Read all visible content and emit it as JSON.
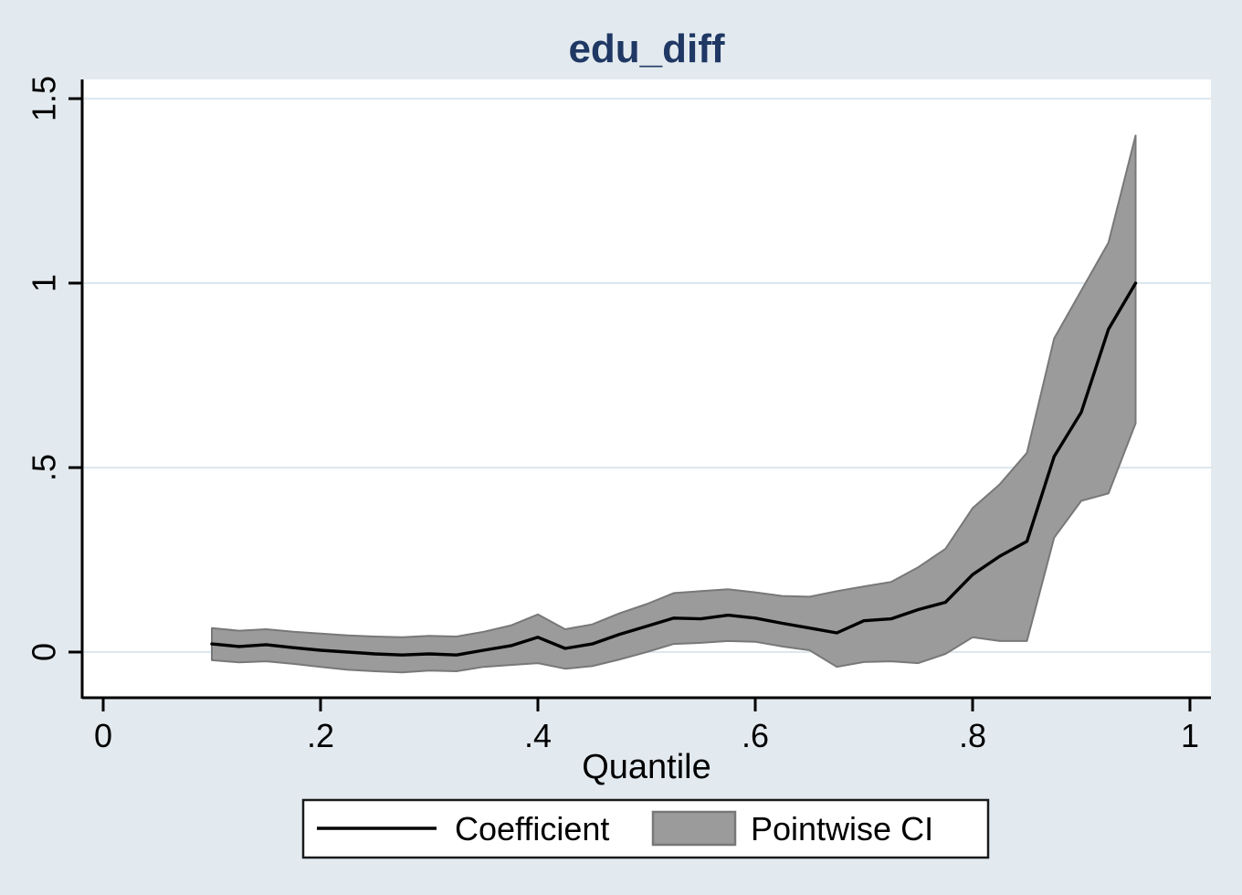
{
  "title": "edu_diff",
  "colors": {
    "background": "#e3eaef",
    "plot_background": "#ffffff",
    "gridline": "#dce7ee",
    "axis": "#000000",
    "title_text": "#1f3864",
    "tick_text": "#000000",
    "coefficient_line": "#000000",
    "ci_band_fill": "#9b9b9b",
    "ci_band_edge": "#787878",
    "legend_background": "#ffffff",
    "legend_border": "#1a1a1a"
  },
  "legend": {
    "items": [
      {
        "label": "Coefficient",
        "swatch": "line"
      },
      {
        "label": "Pointwise CI",
        "swatch": "box"
      }
    ]
  },
  "chart_data": {
    "type": "line",
    "title": "edu_diff",
    "xlabel": "Quantile",
    "ylabel": "",
    "grid": "horizontal",
    "legend_position": "bottom-center",
    "xlim": [
      -0.02,
      1.02
    ],
    "ylim": [
      -0.13,
      1.55
    ],
    "x_ticks": [
      0,
      0.2,
      0.4,
      0.6,
      0.8,
      1
    ],
    "x_tick_labels": [
      "0",
      ".2",
      ".4",
      ".6",
      ".8",
      "1"
    ],
    "y_ticks": [
      0,
      0.5,
      1,
      1.5
    ],
    "y_tick_labels": [
      "0",
      ".5",
      "1",
      "1.5"
    ],
    "x": [
      0.1,
      0.125,
      0.15,
      0.175,
      0.2,
      0.225,
      0.25,
      0.275,
      0.3,
      0.325,
      0.35,
      0.375,
      0.4,
      0.425,
      0.45,
      0.475,
      0.5,
      0.525,
      0.55,
      0.575,
      0.6,
      0.625,
      0.65,
      0.675,
      0.7,
      0.725,
      0.75,
      0.775,
      0.8,
      0.825,
      0.85,
      0.875,
      0.9,
      0.925,
      0.95
    ],
    "series": [
      {
        "name": "Coefficient",
        "type": "line",
        "values": [
          0.022,
          0.015,
          0.02,
          0.012,
          0.005,
          0.0,
          -0.005,
          -0.008,
          -0.005,
          -0.008,
          0.005,
          0.017,
          0.04,
          0.01,
          0.022,
          0.048,
          0.07,
          0.092,
          0.09,
          0.1,
          0.092,
          0.078,
          0.065,
          0.052,
          0.085,
          0.09,
          0.115,
          0.135,
          0.21,
          0.26,
          0.3,
          0.53,
          0.65,
          0.875,
          1.0
        ]
      },
      {
        "name": "Pointwise CI",
        "type": "band",
        "upper": [
          0.065,
          0.058,
          0.062,
          0.055,
          0.05,
          0.045,
          0.042,
          0.04,
          0.044,
          0.042,
          0.055,
          0.072,
          0.102,
          0.062,
          0.075,
          0.105,
          0.13,
          0.16,
          0.165,
          0.17,
          0.162,
          0.152,
          0.15,
          0.165,
          0.178,
          0.19,
          0.23,
          0.28,
          0.39,
          0.455,
          0.54,
          0.85,
          0.98,
          1.11,
          1.4
        ],
        "lower": [
          -0.022,
          -0.028,
          -0.025,
          -0.032,
          -0.04,
          -0.048,
          -0.052,
          -0.055,
          -0.05,
          -0.052,
          -0.04,
          -0.035,
          -0.03,
          -0.045,
          -0.038,
          -0.02,
          0.0,
          0.022,
          0.025,
          0.03,
          0.028,
          0.015,
          0.005,
          -0.04,
          -0.027,
          -0.025,
          -0.03,
          -0.005,
          0.04,
          0.03,
          0.03,
          0.31,
          0.41,
          0.43,
          0.62
        ]
      }
    ]
  }
}
